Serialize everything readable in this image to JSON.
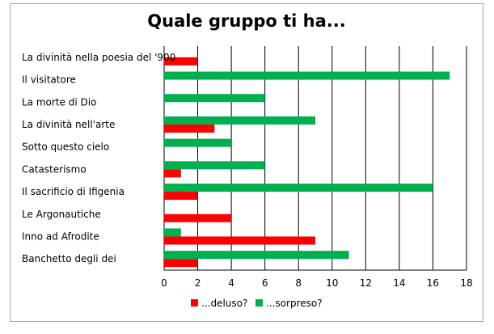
{
  "chart_data": {
    "type": "bar",
    "orientation": "horizontal",
    "title": "Quale gruppo ti ha...",
    "categories": [
      "La divinità nella poesia del '900",
      "Il visitatore",
      "La morte di Dio",
      "La divinità nell'arte",
      "Sotto questo cielo",
      "Catasterismo",
      "Il sacrificio di Ifigenia",
      "Le Argonautiche",
      "Inno ad Afrodite",
      "Banchetto degli dei"
    ],
    "series": [
      {
        "name": "...deluso?",
        "color": "#ff0000",
        "values": [
          2,
          0,
          0,
          3,
          0,
          1,
          2,
          4,
          9,
          2
        ]
      },
      {
        "name": "...sorpreso?",
        "color": "#00b050",
        "values": [
          0,
          17,
          6,
          9,
          4,
          6,
          16,
          0,
          1,
          11
        ]
      }
    ],
    "xlim": [
      0,
      18
    ],
    "xticks": [
      0,
      2,
      4,
      6,
      8,
      10,
      12,
      14,
      16,
      18
    ],
    "grid": "vertical",
    "legend": "bottom"
  }
}
